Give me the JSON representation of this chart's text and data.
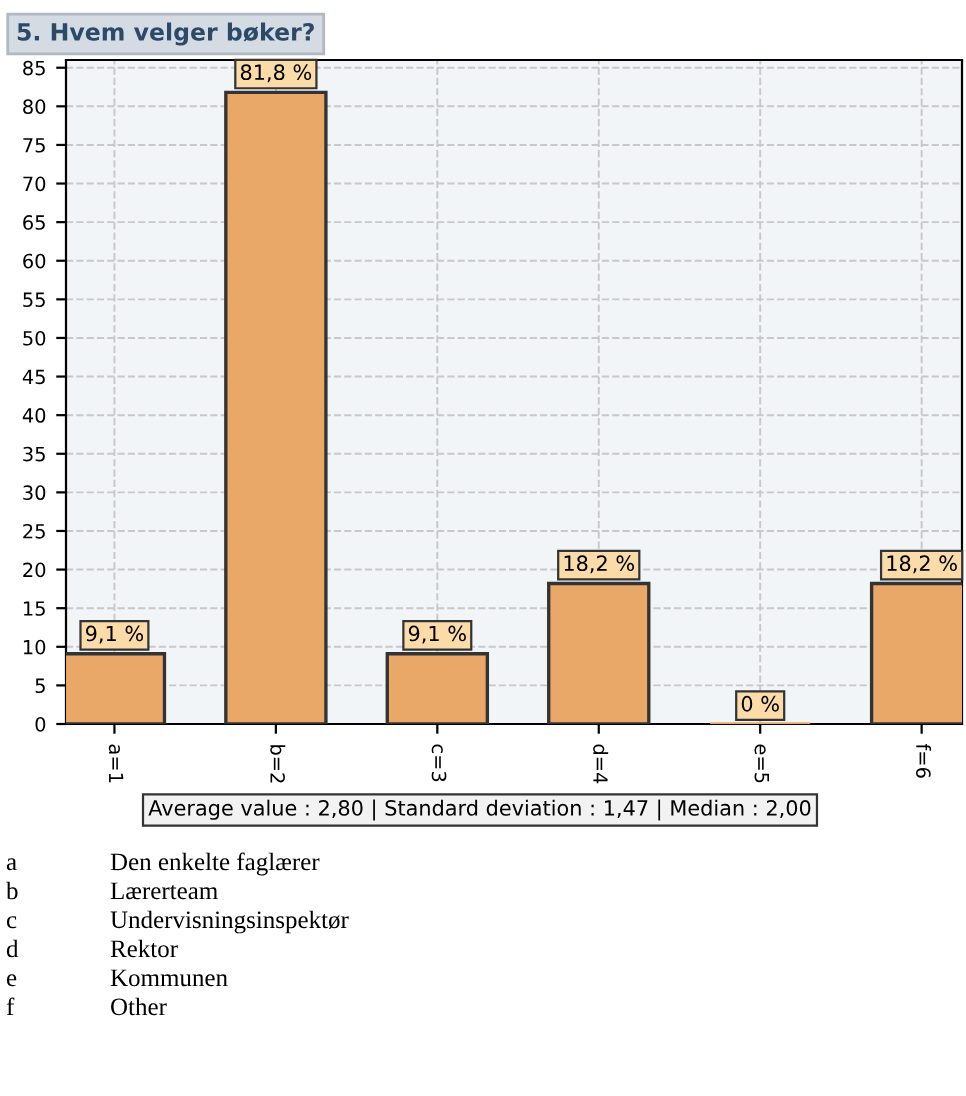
{
  "chart_data": {
    "type": "bar",
    "title": "5. Hvem velger bøker?",
    "categories": [
      "a=1",
      "b=2",
      "c=3",
      "d=4",
      "e=5",
      "f=6"
    ],
    "values": [
      9.1,
      81.8,
      9.1,
      18.2,
      0,
      18.2
    ],
    "value_labels": [
      "9,1 %",
      "81,8 %",
      "9,1 %",
      "18,2 %",
      "0 %",
      "18,2 %"
    ],
    "color": "#e9a867",
    "ylim": [
      0,
      86
    ],
    "yticks": [
      0,
      5,
      10,
      15,
      20,
      25,
      30,
      35,
      40,
      45,
      50,
      55,
      60,
      65,
      70,
      75,
      80,
      85
    ],
    "grid": true,
    "annotations": [
      "Average value : 2,80 | Standard deviation : 1,47 | Median : 2,00",
      "a",
      "Den enkelte faglærer",
      "b",
      "Lærerteam",
      "c",
      "Undervisningsinspektør",
      "d",
      "Rektor",
      "e",
      "Kommunen",
      "f",
      "Other"
    ]
  }
}
